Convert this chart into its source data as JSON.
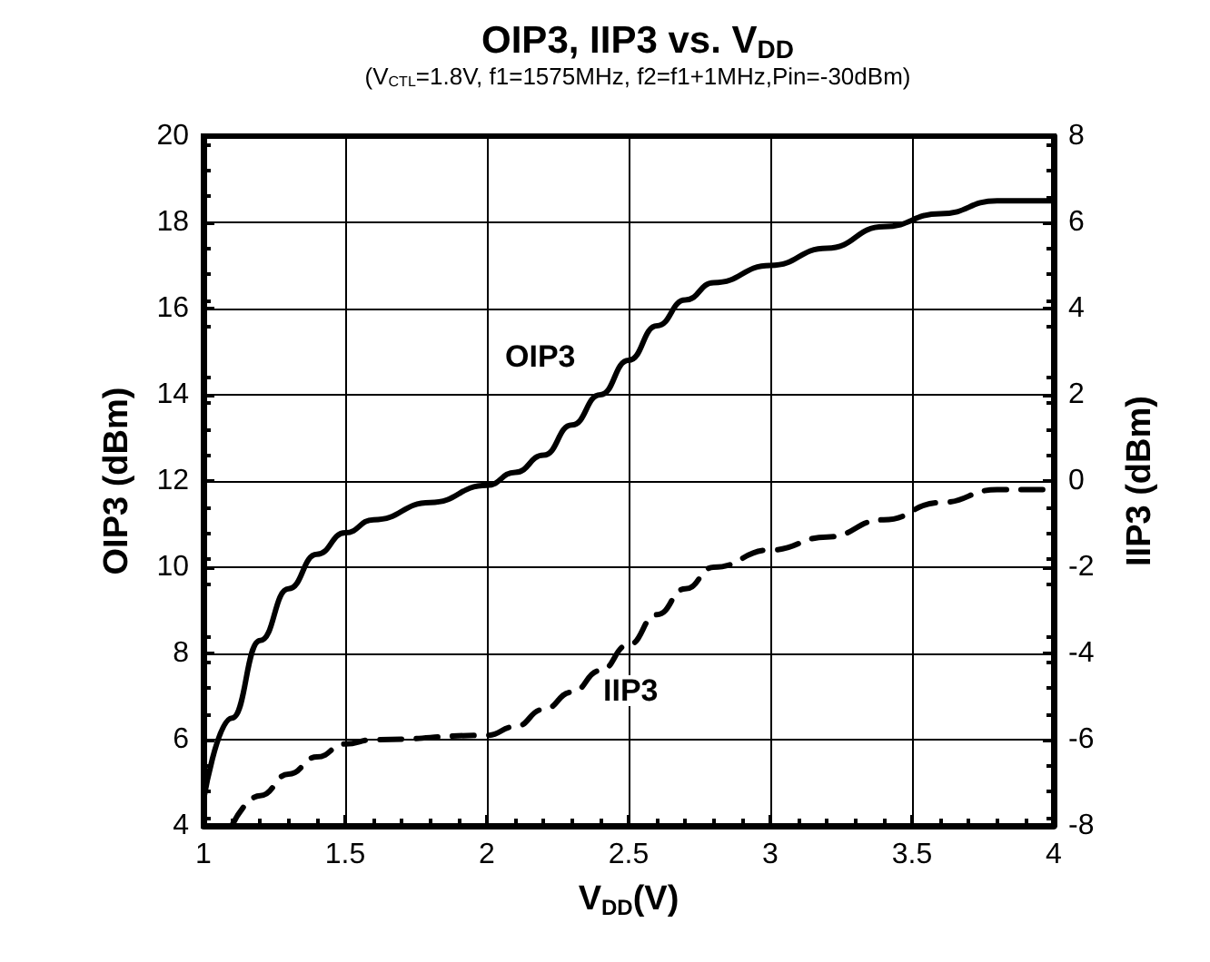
{
  "chart_data": {
    "type": "line",
    "title": "OIP3, IIP3 vs. V$_{DD}$",
    "subtitle": "(V$_{CTL}$=1.8V, f1=1575MHz, f2=f1+1MHz,Pin=-30dBm)",
    "xlabel": "V$_{DD}$(V)",
    "ylabel": "OIP3 (dBm)",
    "y2label": "IIP3 (dBm)",
    "xlim": [
      1,
      4
    ],
    "xticks": [
      1,
      1.5,
      2,
      2.5,
      3,
      3.5,
      4
    ],
    "ylim": [
      4,
      20
    ],
    "yticks": [
      4,
      6,
      8,
      10,
      12,
      14,
      16,
      18,
      20
    ],
    "y2lim": [
      -8,
      8
    ],
    "y2ticks": [
      -8,
      -6,
      -4,
      -2,
      0,
      2,
      4,
      6,
      8
    ],
    "grid": true,
    "marker": "none",
    "series": [
      {
        "color": "#000000",
        "line_style": "solid",
        "x": [
          1,
          1.1,
          1.2,
          1.3,
          1.4,
          1.5,
          1.6,
          1.8,
          2.0,
          2.1,
          2.2,
          2.3,
          2.4,
          2.5,
          2.6,
          2.7,
          2.8,
          3.0,
          3.2,
          3.4,
          3.6,
          3.8,
          4.0
        ],
        "values": [
          4.6,
          6.5,
          8.3,
          9.5,
          10.3,
          10.8,
          11.1,
          11.5,
          11.9,
          12.2,
          12.6,
          13.3,
          14.0,
          14.8,
          15.6,
          16.2,
          16.6,
          17.0,
          17.4,
          17.9,
          18.2,
          18.5,
          18.5
        ]
      },
      {
        "color": "#000000",
        "line_style": "dashed",
        "axis": "y2",
        "x": [
          1.1,
          1.2,
          1.3,
          1.4,
          1.5,
          1.6,
          2.0,
          2.1,
          2.2,
          2.3,
          2.4,
          2.5,
          2.6,
          2.7,
          2.8,
          3.0,
          3.2,
          3.4,
          3.6,
          3.8,
          4.0
        ],
        "values": [
          -8,
          -7.3,
          -6.8,
          -6.4,
          -6.1,
          -6.0,
          -5.9,
          -5.7,
          -5.3,
          -4.9,
          -4.4,
          -3.8,
          -3.1,
          -2.5,
          -2.0,
          -1.6,
          -1.3,
          -0.9,
          -0.5,
          -0.2,
          -0.2
        ]
      }
    ],
    "annotations": [
      "OIP3",
      "IIP3"
    ]
  }
}
